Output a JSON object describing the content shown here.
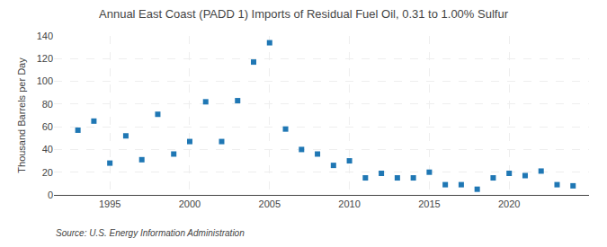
{
  "chart_data": {
    "type": "scatter",
    "title": "Annual East Coast (PADD 1) Imports of Residual Fuel Oil, 0.31 to 1.00% Sulfur",
    "ylabel": "Thousand Barrels per Day",
    "source": "Source: U.S. Energy Information Administration",
    "x": [
      1993,
      1994,
      1995,
      1996,
      1997,
      1998,
      1999,
      2000,
      2001,
      2002,
      2003,
      2004,
      2005,
      2006,
      2007,
      2008,
      2009,
      2010,
      2011,
      2012,
      2013,
      2014,
      2015,
      2016,
      2017,
      2018,
      2019,
      2020,
      2021,
      2022,
      2023,
      2024
    ],
    "values": [
      57,
      65,
      28,
      52,
      31,
      71,
      36,
      47,
      82,
      47,
      83,
      117,
      134,
      58,
      40,
      36,
      26,
      30,
      15,
      19,
      15,
      15,
      20,
      9,
      9,
      5,
      15,
      19,
      17,
      21,
      9,
      8
    ],
    "xlim": [
      1991.5,
      2025
    ],
    "xticks": [
      1995,
      2000,
      2005,
      2010,
      2015,
      2020
    ],
    "ylim": [
      0,
      140
    ],
    "yticks": [
      0,
      20,
      40,
      60,
      80,
      100,
      120,
      140
    ],
    "marker": "square",
    "grid": true
  }
}
